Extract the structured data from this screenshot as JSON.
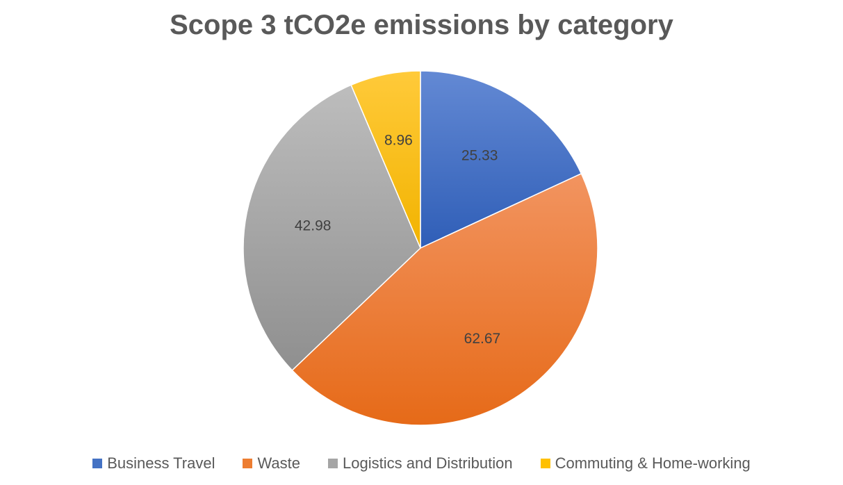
{
  "chart_data": {
    "type": "pie",
    "title": "Scope 3 tCO2e emissions by category",
    "categories": [
      "Business Travel",
      "Waste",
      "Logistics and Distribution",
      "Commuting & Home-working"
    ],
    "values": [
      25.33,
      62.67,
      42.98,
      8.96
    ],
    "value_labels": [
      "25.33",
      "62.67",
      "42.98",
      "8.96"
    ],
    "colors": [
      "#4472C4",
      "#ED7D31",
      "#A5A5A5",
      "#FFC000"
    ],
    "start_angle": "12 o'clock",
    "direction": "clockwise",
    "legend": "bottom"
  }
}
